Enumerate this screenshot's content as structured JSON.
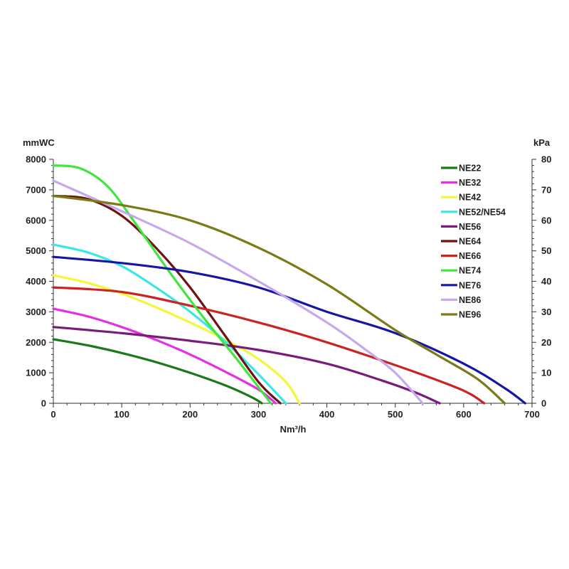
{
  "chart_data": {
    "type": "line",
    "xlabel": "Nm³/h",
    "ylabel_left": "mmWC",
    "ylabel_right": "kPa",
    "xlim": [
      0,
      700
    ],
    "ylim_left": [
      0,
      8000
    ],
    "ylim_right": [
      0,
      80
    ],
    "x_ticks": [
      0,
      100,
      200,
      300,
      400,
      500,
      600,
      700
    ],
    "y_ticks_left": [
      0,
      1000,
      2000,
      3000,
      4000,
      5000,
      6000,
      7000,
      8000
    ],
    "y_ticks_right": [
      0,
      10,
      20,
      30,
      40,
      50,
      60,
      70,
      80
    ],
    "grid": false,
    "legend_position": "top-right",
    "series": [
      {
        "name": "NE22",
        "color": "#1a7a1a",
        "points": [
          [
            0,
            2100
          ],
          [
            50,
            1900
          ],
          [
            100,
            1650
          ],
          [
            150,
            1350
          ],
          [
            200,
            1000
          ],
          [
            250,
            600
          ],
          [
            290,
            200
          ],
          [
            305,
            0
          ]
        ]
      },
      {
        "name": "NE32",
        "color": "#e62ee6",
        "points": [
          [
            0,
            3100
          ],
          [
            50,
            2850
          ],
          [
            100,
            2500
          ],
          [
            150,
            2080
          ],
          [
            200,
            1600
          ],
          [
            250,
            1050
          ],
          [
            300,
            450
          ],
          [
            325,
            0
          ]
        ]
      },
      {
        "name": "NE42",
        "color": "#f5f53a",
        "points": [
          [
            0,
            4200
          ],
          [
            50,
            3950
          ],
          [
            100,
            3600
          ],
          [
            150,
            3150
          ],
          [
            200,
            2650
          ],
          [
            250,
            2100
          ],
          [
            300,
            1450
          ],
          [
            340,
            700
          ],
          [
            360,
            0
          ]
        ]
      },
      {
        "name": "NE52/NE54",
        "color": "#3ae6e6",
        "points": [
          [
            0,
            5200
          ],
          [
            50,
            4950
          ],
          [
            100,
            4500
          ],
          [
            150,
            3800
          ],
          [
            200,
            3000
          ],
          [
            250,
            2050
          ],
          [
            300,
            950
          ],
          [
            340,
            0
          ]
        ]
      },
      {
        "name": "NE56",
        "color": "#7a1a7a",
        "points": [
          [
            0,
            2500
          ],
          [
            100,
            2300
          ],
          [
            200,
            2050
          ],
          [
            300,
            1750
          ],
          [
            400,
            1300
          ],
          [
            480,
            750
          ],
          [
            530,
            350
          ],
          [
            565,
            0
          ]
        ]
      },
      {
        "name": "NE64",
        "color": "#6e1212",
        "points": [
          [
            0,
            6800
          ],
          [
            50,
            6700
          ],
          [
            100,
            6150
          ],
          [
            150,
            5100
          ],
          [
            200,
            3800
          ],
          [
            250,
            2250
          ],
          [
            300,
            700
          ],
          [
            332,
            0
          ]
        ]
      },
      {
        "name": "NE66",
        "color": "#cc2222",
        "points": [
          [
            0,
            3800
          ],
          [
            100,
            3650
          ],
          [
            200,
            3200
          ],
          [
            300,
            2650
          ],
          [
            400,
            2000
          ],
          [
            500,
            1250
          ],
          [
            580,
            600
          ],
          [
            610,
            300
          ],
          [
            630,
            0
          ]
        ]
      },
      {
        "name": "NE74",
        "color": "#3ee63e",
        "points": [
          [
            0,
            7800
          ],
          [
            40,
            7700
          ],
          [
            80,
            7100
          ],
          [
            120,
            5900
          ],
          [
            170,
            4300
          ],
          [
            220,
            2800
          ],
          [
            270,
            1400
          ],
          [
            318,
            0
          ]
        ]
      },
      {
        "name": "NE76",
        "color": "#1616a6",
        "points": [
          [
            0,
            4800
          ],
          [
            100,
            4600
          ],
          [
            200,
            4300
          ],
          [
            300,
            3800
          ],
          [
            400,
            3000
          ],
          [
            500,
            2300
          ],
          [
            600,
            1300
          ],
          [
            660,
            500
          ],
          [
            690,
            0
          ]
        ]
      },
      {
        "name": "NE86",
        "color": "#c8a8ec",
        "points": [
          [
            0,
            7300
          ],
          [
            100,
            6300
          ],
          [
            200,
            5250
          ],
          [
            300,
            4000
          ],
          [
            400,
            2650
          ],
          [
            460,
            1700
          ],
          [
            500,
            1000
          ],
          [
            540,
            0
          ]
        ]
      },
      {
        "name": "NE96",
        "color": "#7a7a16",
        "points": [
          [
            0,
            6800
          ],
          [
            100,
            6500
          ],
          [
            200,
            6000
          ],
          [
            300,
            5100
          ],
          [
            400,
            3900
          ],
          [
            500,
            2400
          ],
          [
            560,
            1600
          ],
          [
            620,
            800
          ],
          [
            660,
            0
          ]
        ]
      }
    ]
  }
}
